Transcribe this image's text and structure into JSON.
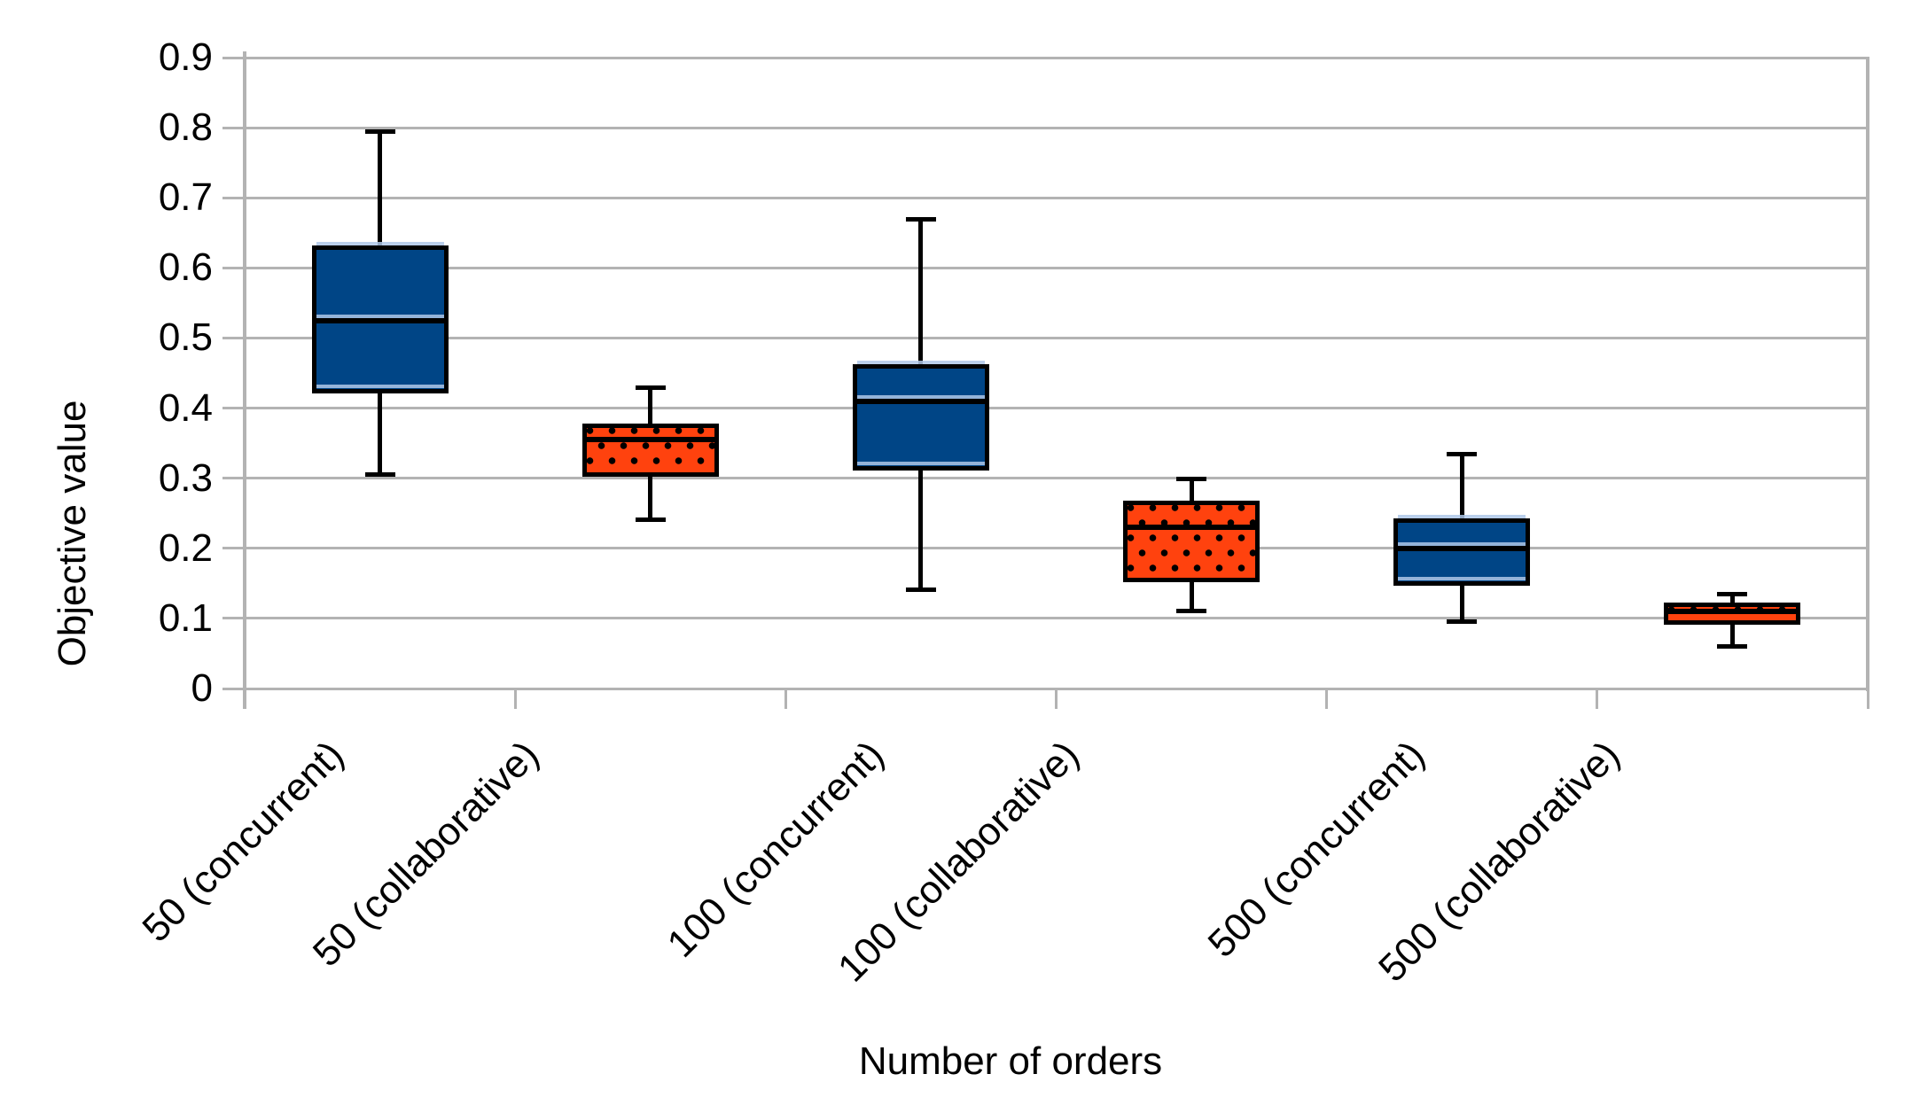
{
  "chart_data": {
    "type": "boxplot",
    "title": "",
    "xlabel": "Number of orders",
    "ylabel": "Objective value",
    "ylim": [
      0,
      0.9
    ],
    "ytick_step": 0.1,
    "yticks": [
      "0",
      "0.1",
      "0.2",
      "0.3",
      "0.4",
      "0.5",
      "0.6",
      "0.7",
      "0.8",
      "0.9"
    ],
    "grid": true,
    "grid_color": "#b3b3b3",
    "legend": "none",
    "categories": [
      "50 (concurrent)",
      "50 (collaborative)",
      "100 (concurrent)",
      "100 (collaborative)",
      "500 (concurrent)",
      "500 (collaborative)"
    ],
    "series_styles": [
      {
        "name": "concurrent",
        "fill": "#004586",
        "pattern": "solid",
        "border": "#000000"
      },
      {
        "name": "collaborative",
        "fill": "#FF420E",
        "pattern": "black-dots",
        "border": "#000000"
      }
    ],
    "boxes": [
      {
        "category": "50 (concurrent)",
        "series": "concurrent",
        "min": 0.305,
        "q1": 0.425,
        "median": 0.525,
        "q3": 0.63,
        "max": 0.795
      },
      {
        "category": "50 (collaborative)",
        "series": "collaborative",
        "min": 0.24,
        "q1": 0.305,
        "median": 0.355,
        "q3": 0.375,
        "max": 0.43
      },
      {
        "category": "100 (concurrent)",
        "series": "concurrent",
        "min": 0.14,
        "q1": 0.315,
        "median": 0.41,
        "q3": 0.46,
        "max": 0.67
      },
      {
        "category": "100 (collaborative)",
        "series": "collaborative",
        "min": 0.11,
        "q1": 0.155,
        "median": 0.23,
        "q3": 0.265,
        "max": 0.3
      },
      {
        "category": "500 (concurrent)",
        "series": "concurrent",
        "min": 0.095,
        "q1": 0.15,
        "median": 0.2,
        "q3": 0.24,
        "max": 0.335
      },
      {
        "category": "500 (collaborative)",
        "series": "collaborative",
        "min": 0.06,
        "q1": 0.095,
        "median": 0.11,
        "q3": 0.12,
        "max": 0.135
      }
    ]
  }
}
